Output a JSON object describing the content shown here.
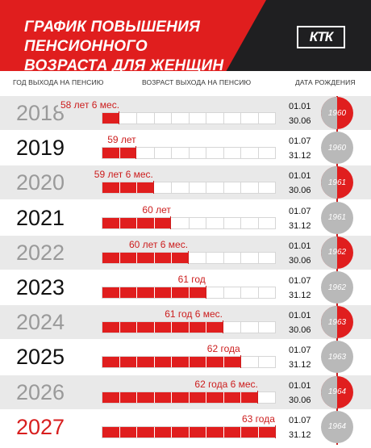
{
  "header": {
    "title_line1": "ГРАФИК ПОВЫШЕНИЯ ПЕНСИОННОГО",
    "title_line2": "ВОЗРАСТА ДЛЯ ЖЕНЩИН",
    "logo": "КТК"
  },
  "columns": {
    "year": "ГОД ВЫХОДА НА ПЕНСИЮ",
    "age": "ВОЗРАСТ ВЫХОДА НА ПЕНСИЮ",
    "birth": "ДАТА РОЖДЕНИЯ"
  },
  "colors": {
    "accent": "#e01e1e",
    "dark": "#1f1f21",
    "gray": "#b9b9b9"
  },
  "rows": [
    {
      "year": "2018",
      "age_label": "58 лет 6 мес.",
      "filled_cells": 1,
      "date_from": "01.01",
      "date_to": "30.06",
      "birth_year": "1960"
    },
    {
      "year": "2019",
      "age_label": "59 лет",
      "filled_cells": 2,
      "date_from": "01.07",
      "date_to": "31.12",
      "birth_year": "1960"
    },
    {
      "year": "2020",
      "age_label": "59 лет 6 мес.",
      "filled_cells": 3,
      "date_from": "01.01",
      "date_to": "30.06",
      "birth_year": "1961"
    },
    {
      "year": "2021",
      "age_label": "60 лет",
      "filled_cells": 4,
      "date_from": "01.07",
      "date_to": "31.12",
      "birth_year": "1961"
    },
    {
      "year": "2022",
      "age_label": "60 лет 6 мес.",
      "filled_cells": 5,
      "date_from": "01.01",
      "date_to": "30.06",
      "birth_year": "1962"
    },
    {
      "year": "2023",
      "age_label": "61 год",
      "filled_cells": 6,
      "date_from": "01.07",
      "date_to": "31.12",
      "birth_year": "1962"
    },
    {
      "year": "2024",
      "age_label": "61 год 6 мес.",
      "filled_cells": 7,
      "date_from": "01.01",
      "date_to": "30.06",
      "birth_year": "1963"
    },
    {
      "year": "2025",
      "age_label": "62 года",
      "filled_cells": 8,
      "date_from": "01.07",
      "date_to": "31.12",
      "birth_year": "1963"
    },
    {
      "year": "2026",
      "age_label": "62 года 6 мес.",
      "filled_cells": 9,
      "date_from": "01.01",
      "date_to": "30.06",
      "birth_year": "1964"
    },
    {
      "year": "2027",
      "age_label": "63 года",
      "filled_cells": 10,
      "date_from": "01.07",
      "date_to": "31.12",
      "birth_year": "1964"
    }
  ]
}
